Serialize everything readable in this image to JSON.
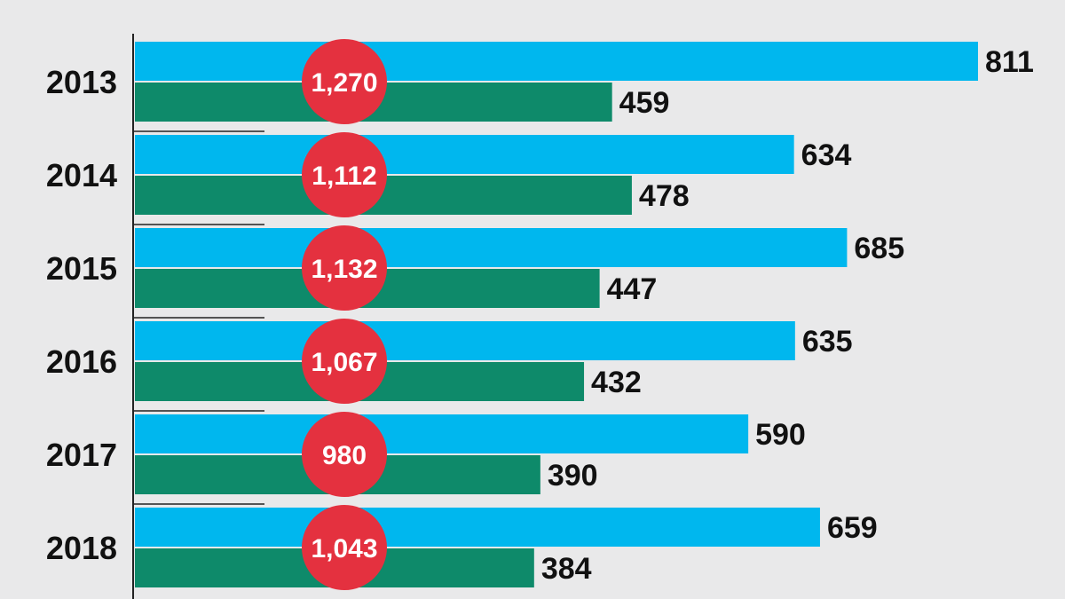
{
  "chart_data": {
    "type": "bar",
    "title": "",
    "orientation": "horizontal",
    "grouping": "grouped",
    "categories": [
      "2013",
      "2014",
      "2015",
      "2016",
      "2017",
      "2018"
    ],
    "series": [
      {
        "values": [
          811,
          634,
          685,
          635,
          590,
          659
        ],
        "color": "#00b7ee"
      },
      {
        "values": [
          459,
          478,
          447,
          432,
          390,
          384
        ],
        "color": "#0e8a6a"
      }
    ],
    "totals": {
      "labels": [
        "1,270",
        "1,112",
        "1,132",
        "1,067",
        "980",
        "1,043"
      ],
      "values": [
        1270,
        1112,
        1132,
        1067,
        980,
        1043
      ],
      "color": "#e4313f"
    },
    "xlim": [
      0,
      811
    ],
    "grid": false,
    "legend": "none"
  }
}
